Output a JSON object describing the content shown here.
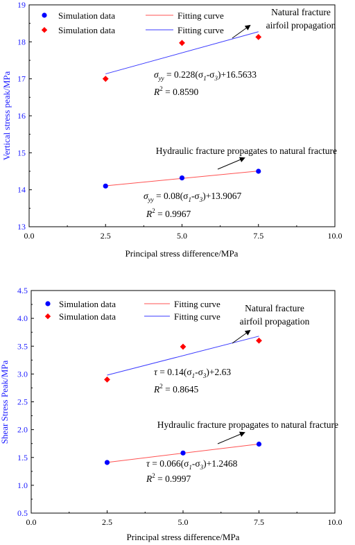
{
  "chart_data": [
    {
      "type": "scatter",
      "xlabel": "Principal stress difference/MPa",
      "ylabel": "Vertical stress peak/MPa",
      "xlim": [
        0.0,
        10.0
      ],
      "ylim": [
        13,
        19
      ],
      "xticks": [
        "0.0",
        "2.5",
        "5.0",
        "7.5",
        "10.0"
      ],
      "yticks": [
        "13",
        "14",
        "15",
        "16",
        "17",
        "18",
        "19"
      ],
      "series": [
        {
          "marker": "circle",
          "color": "#0000ff",
          "x": [
            2.5,
            5.0,
            7.5
          ],
          "y": [
            14.1,
            14.32,
            14.5
          ],
          "fit": {
            "color": "#ff5050",
            "x": [
              2.5,
              7.5
            ],
            "y": [
              14.1067,
              14.5067
            ]
          }
        },
        {
          "marker": "diamond",
          "color": "#ff0000",
          "x": [
            2.5,
            5.0,
            7.5
          ],
          "y": [
            17.0,
            17.97,
            18.13
          ],
          "fit": {
            "color": "#3a3aff",
            "x": [
              2.5,
              7.5
            ],
            "y": [
              17.1333,
              18.2733
            ]
          }
        }
      ],
      "legend": [
        {
          "marker": "circle",
          "color": "#0000ff",
          "text": "Simulation data",
          "line_color": "#ff5050",
          "line_text": "Fitting curve"
        },
        {
          "marker": "diamond",
          "color": "#ff0000",
          "text": "Simulation data",
          "line_color": "#3a3aff",
          "line_text": "Fitting curve"
        }
      ],
      "annotations": {
        "upper_line1": "Natural fracture",
        "upper_line2": "airfoil propagation",
        "lower": "Hydraulic fracture propagates to natural fracture",
        "upper_eq_sym": "σ",
        "upper_eq_sub": "yy",
        "upper_eq_rest": " = 0.228(σ",
        "upper_eq_s1": "1",
        "upper_eq_mid": "-σ",
        "upper_eq_s3": "3",
        "upper_eq_end": ")+16.5633",
        "upper_r2_label": "R",
        "upper_r2_sup": "2",
        "upper_r2_val": " = 0.8590",
        "lower_eq_sym": "σ",
        "lower_eq_sub": "yy",
        "lower_eq_rest": " = 0.08(σ",
        "lower_eq_s1": "1",
        "lower_eq_mid": "-σ",
        "lower_eq_s3": "3",
        "lower_eq_end": ")+13.9067",
        "lower_r2_label": "R",
        "lower_r2_sup": "2",
        "lower_r2_val": " = 0.9967"
      }
    },
    {
      "type": "scatter",
      "xlabel": "Principal stress difference/MPa",
      "ylabel": "Shear Stress Peak/MPa",
      "xlim": [
        0.0,
        10.0
      ],
      "ylim": [
        0.5,
        4.5
      ],
      "xticks": [
        "0.0",
        "2.5",
        "5.0",
        "7.5",
        "10.0"
      ],
      "yticks": [
        "0.5",
        "1.0",
        "1.5",
        "2.0",
        "2.5",
        "3.0",
        "3.5",
        "4.0",
        "4.5"
      ],
      "series": [
        {
          "marker": "circle",
          "color": "#0000ff",
          "x": [
            2.5,
            5.0,
            7.5
          ],
          "y": [
            1.41,
            1.58,
            1.74
          ],
          "fit": {
            "color": "#ff5050",
            "x": [
              2.5,
              7.5
            ],
            "y": [
              1.4118,
              1.7418
            ]
          }
        },
        {
          "marker": "diamond",
          "color": "#ff0000",
          "x": [
            2.5,
            5.0,
            7.5
          ],
          "y": [
            2.9,
            3.49,
            3.6
          ],
          "fit": {
            "color": "#3a3aff",
            "x": [
              2.5,
              7.5
            ],
            "y": [
              2.98,
              3.68
            ]
          }
        }
      ],
      "legend": [
        {
          "marker": "circle",
          "color": "#0000ff",
          "text": "Simulation data",
          "line_color": "#ff5050",
          "line_text": "Fitting curve"
        },
        {
          "marker": "diamond",
          "color": "#ff0000",
          "text": "Simulation data",
          "line_color": "#3a3aff",
          "line_text": "Fitting curve"
        }
      ],
      "annotations": {
        "upper_line1": "Natural fracture",
        "upper_line2": "airfoil propagation",
        "lower": "Hydraulic fracture propagates to natural fracture",
        "upper_eq_sym": "τ",
        "upper_eq_rest": " = 0.14(σ",
        "upper_eq_s1": "1",
        "upper_eq_mid": "-σ",
        "upper_eq_s3": "3",
        "upper_eq_end": ")+2.63",
        "upper_r2_label": "R",
        "upper_r2_sup": "2",
        "upper_r2_val": " = 0.8645",
        "lower_eq_sym": "τ",
        "lower_eq_rest": " = 0.066(σ",
        "lower_eq_s1": "1",
        "lower_eq_mid": "-σ",
        "lower_eq_s3": "3",
        "lower_eq_end": ")+1.2468",
        "lower_r2_label": "R",
        "lower_r2_sup": "2",
        "lower_r2_val": " = 0.9997"
      }
    }
  ]
}
